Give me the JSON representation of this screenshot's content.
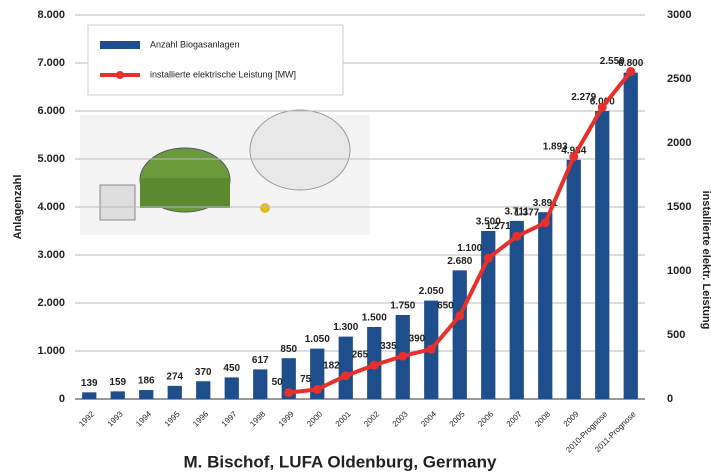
{
  "chart_data": {
    "type": "bar",
    "categories": [
      "1992",
      "1993",
      "1994",
      "1995",
      "1996",
      "1997",
      "1998",
      "1999",
      "2000",
      "2001",
      "2002",
      "2003",
      "2004",
      "2005",
      "2006",
      "2007",
      "2008",
      "2009",
      "2010-Prognose",
      "2011-Prognose"
    ],
    "y_label": "Anlagenzahl",
    "y2_label": "installierte elektr. Leistung",
    "caption": "M. Bischof, LUFA Oldenburg, Germany",
    "series": [
      {
        "name": "Anzahl Biogasanlagen",
        "color": "#1f4e8c",
        "type": "bar",
        "values": [
          139,
          159,
          186,
          274,
          370,
          450,
          617,
          850,
          1050,
          1300,
          1500,
          1750,
          2050,
          2680,
          3500,
          3711,
          3891,
          4984,
          6000,
          6800
        ],
        "value_labels": [
          "139",
          "159",
          "186",
          "274",
          "370",
          "450",
          "617",
          "850",
          "1.050",
          "1.300",
          "1.500",
          "1.750",
          "2.050",
          "2.680",
          "3.500",
          "3.711",
          "3.891",
          "4.984",
          "6.000",
          "6.800"
        ]
      },
      {
        "name": "installierte elektrische Leistung [MW]",
        "color": "#e8302a",
        "type": "line",
        "axis": "y2",
        "values": [
          null,
          null,
          null,
          null,
          null,
          null,
          null,
          50,
          75,
          182,
          265,
          335,
          390,
          650,
          1100,
          1271,
          1377,
          1893,
          2279,
          2559
        ],
        "value_labels": [
          null,
          null,
          null,
          null,
          null,
          null,
          null,
          "50",
          "75",
          "182",
          "265",
          "335",
          "390",
          "650",
          "1.100",
          "1.271",
          "1.377",
          "1.893",
          "2.279",
          "2.559"
        ]
      }
    ],
    "ylim": [
      0,
      8000
    ],
    "yticks": [
      {
        "value": 0,
        "label": "0"
      },
      {
        "value": 1000,
        "label": "1.000"
      },
      {
        "value": 2000,
        "label": "2.000"
      },
      {
        "value": 3000,
        "label": "3.000"
      },
      {
        "value": 4000,
        "label": "4.000"
      },
      {
        "value": 5000,
        "label": "5.000"
      },
      {
        "value": 6000,
        "label": "6.000"
      },
      {
        "value": 7000,
        "label": "7.000"
      },
      {
        "value": 8000,
        "label": "8.000"
      }
    ],
    "y2lim": [
      0,
      3000
    ],
    "y2ticks": [
      0,
      500,
      1000,
      1500,
      2000,
      2500,
      3000
    ],
    "grid": true
  }
}
